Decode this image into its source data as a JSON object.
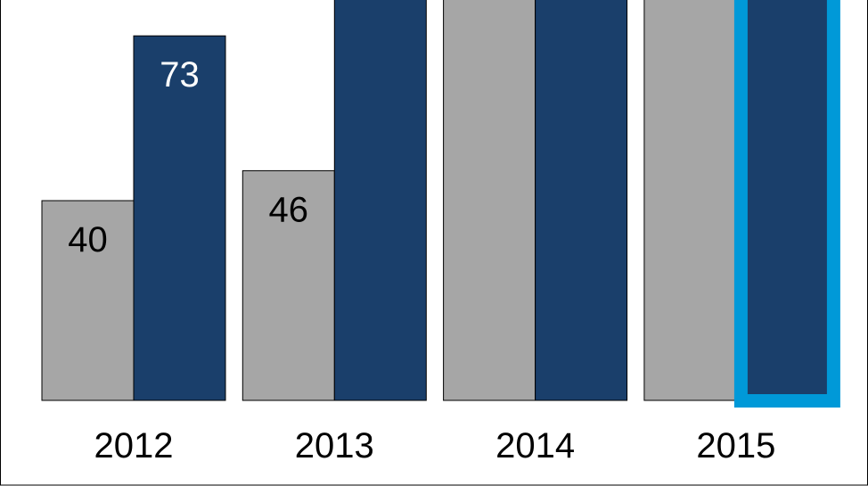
{
  "chart_data": {
    "type": "bar",
    "categories": [
      "2012",
      "2013",
      "2014",
      "2015"
    ],
    "series": [
      {
        "values": [
          40,
          46,
          null,
          null
        ],
        "data_labels": [
          "40",
          "46",
          null,
          null
        ],
        "color": "#a6a6a6",
        "label_color": "#000000"
      },
      {
        "values": [
          73,
          null,
          null,
          null
        ],
        "data_labels": [
          "73",
          null,
          null,
          null
        ],
        "color": "#1a3f6b",
        "label_color": "#ffffff"
      }
    ],
    "highlight": {
      "category": "2015",
      "series_index": 1,
      "color": "#0099d8"
    },
    "ylim": [
      0,
      78
    ],
    "grid": false,
    "legend": "none",
    "title": "",
    "xlabel": "",
    "ylabel": ""
  }
}
